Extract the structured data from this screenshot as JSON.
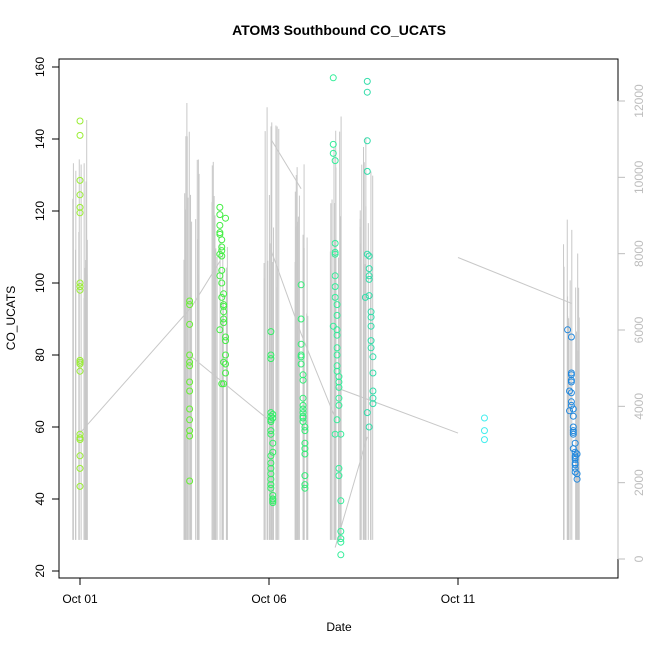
{
  "chart_data": {
    "type": "scatter",
    "title": "ATOM3 Southbound CO_UCATS",
    "xlabel": "Date",
    "ylabel": "CO_UCATS",
    "ylim": [
      20,
      160
    ],
    "y_ticks": [
      "20",
      "40",
      "60",
      "80",
      "100",
      "120",
      "140",
      "160"
    ],
    "x_ticks": [
      {
        "label": "Oct 01",
        "day": 1.0
      },
      {
        "label": "Oct 06",
        "day": 6.0
      },
      {
        "label": "Oct 11",
        "day": 11.0
      }
    ],
    "xlim_days": [
      0.6,
      15.1
    ],
    "secondary_axis": {
      "ylim": [
        0,
        12000
      ],
      "ticks": [
        "0",
        "2000",
        "4000",
        "6000",
        "8000",
        "10000",
        "12000"
      ],
      "color": "#bdbdbd"
    },
    "grid": false,
    "colors": {
      "altitude_trace": "#c8c8c8",
      "points_early": "#99ee33",
      "points_mid": "#33ee55",
      "points_late": "#33ddaa",
      "points_cyan": "#44eeee",
      "points_blue": "#2288dd"
    },
    "altitude_trace": {
      "units": "m",
      "bursts": [
        {
          "day": 1.0,
          "min": 500,
          "max": 12000
        },
        {
          "day": 3.95,
          "min": 500,
          "max": 12000
        },
        {
          "day": 4.7,
          "min": 500,
          "max": 11000
        },
        {
          "day": 6.05,
          "min": 500,
          "max": 12000
        },
        {
          "day": 6.85,
          "min": 500,
          "max": 11000
        },
        {
          "day": 7.75,
          "min": 500,
          "max": 12000
        },
        {
          "day": 8.6,
          "min": 500,
          "max": 12000
        },
        {
          "day": 14.0,
          "min": 500,
          "max": 9000
        }
      ],
      "transits": [
        [
          [
            1.0,
            3300
          ],
          [
            3.95,
            6600
          ],
          [
            4.7,
            7800
          ]
        ],
        [
          [
            3.95,
            5300
          ],
          [
            6.05,
            3600
          ]
        ],
        [
          [
            6.05,
            11000
          ],
          [
            6.85,
            9700
          ]
        ],
        [
          [
            6.05,
            8100
          ],
          [
            6.85,
            5900
          ],
          [
            7.75,
            3700
          ]
        ],
        [
          [
            7.75,
            4500
          ],
          [
            11.0,
            3300
          ]
        ],
        [
          [
            11.0,
            7900
          ],
          [
            14.0,
            6700
          ]
        ],
        [
          [
            8.6,
            3200
          ],
          [
            7.75,
            300
          ]
        ]
      ]
    },
    "series": [
      {
        "color": "#99ee33",
        "x": [
          1.0,
          1.0,
          1.0,
          1.0,
          1.0,
          1.0,
          1.0,
          1.0,
          1.0,
          1.0,
          1.0,
          1.0,
          1.0,
          1.0,
          1.0,
          1.0,
          1.0,
          1.0,
          1.0
        ],
        "y": [
          145,
          141,
          128.5,
          124.5,
          121,
          119.5,
          100,
          99,
          98,
          78.5,
          78,
          77.5,
          75.5,
          58,
          57,
          56.5,
          52,
          48.5,
          43.5
        ]
      },
      {
        "color": "#66ee33",
        "x": [
          3.9,
          3.9,
          3.9,
          3.9,
          3.9,
          3.9,
          3.9,
          3.9,
          3.9,
          3.9,
          3.9,
          3.9,
          3.9
        ],
        "y": [
          95,
          94,
          88.5,
          80,
          78,
          77,
          72.5,
          70,
          65,
          62,
          59,
          57.5,
          45
        ]
      },
      {
        "color": "#44ee44",
        "x": [
          4.7,
          4.7,
          4.7,
          4.7,
          4.75,
          4.75,
          4.75,
          4.75,
          4.75,
          4.8,
          4.8,
          4.8,
          4.8,
          4.8,
          4.85,
          4.85,
          4.85,
          4.85,
          4.85,
          4.7,
          4.7,
          4.75,
          4.75,
          4.8,
          4.8,
          4.7,
          4.75,
          4.8,
          4.85,
          4.7
        ],
        "y": [
          121,
          119,
          116,
          113.5,
          112,
          109,
          107.5,
          103.5,
          100,
          97,
          94,
          93.5,
          90,
          89,
          85,
          84,
          80,
          77.5,
          75,
          114,
          108,
          110,
          96,
          92,
          78,
          87,
          72,
          72,
          118,
          102
        ]
      },
      {
        "color": "#33ee66",
        "x": [
          6.05,
          6.05,
          6.05,
          6.05,
          6.05,
          6.05,
          6.05,
          6.05,
          6.05,
          6.05,
          6.05,
          6.05,
          6.05,
          6.05,
          6.05,
          6.05,
          6.1,
          6.1,
          6.1,
          6.1,
          6.1,
          6.1,
          6.1,
          6.1,
          6.1
        ],
        "y": [
          86.5,
          80,
          79,
          64,
          63,
          62,
          61.5,
          59,
          58,
          52,
          50,
          48.5,
          47,
          45.5,
          44,
          43,
          40,
          39.5,
          39,
          63.5,
          62.5,
          55.5,
          53,
          41,
          40
        ]
      },
      {
        "color": "#33ee77",
        "x": [
          6.85,
          6.85,
          6.85,
          6.85,
          6.85,
          6.85,
          6.9,
          6.9,
          6.9,
          6.9,
          6.9,
          6.9,
          6.9,
          6.9,
          6.9,
          6.95,
          6.95,
          6.95,
          6.95,
          6.95,
          6.95,
          6.95,
          6.95
        ],
        "y": [
          99.5,
          90,
          83,
          80,
          79.5,
          77.5,
          74.5,
          73,
          68,
          66,
          65,
          64,
          63,
          62.5,
          61.5,
          60,
          59,
          55.5,
          54,
          52.5,
          46.5,
          44,
          43
        ]
      },
      {
        "color": "#33ee99",
        "x": [
          7.7,
          7.7,
          7.7,
          7.75,
          7.75,
          7.75,
          7.75,
          7.75,
          7.75,
          7.8,
          7.8,
          7.8,
          7.8,
          7.8,
          7.8,
          7.8,
          7.8,
          7.85,
          7.85,
          7.85,
          7.85,
          7.85,
          7.85,
          7.9,
          7.9,
          7.9,
          7.9,
          7.9,
          7.9,
          7.75,
          7.8,
          7.85,
          7.7,
          7.75
        ],
        "y": [
          157,
          138.5,
          136,
          134,
          111,
          108,
          108.5,
          102,
          99,
          94,
          91,
          87,
          85.5,
          82,
          80,
          77,
          75.5,
          74,
          72.5,
          71,
          68,
          48.5,
          46.5,
          39.5,
          31,
          29,
          28,
          24.5,
          58,
          58,
          62,
          66,
          88,
          96
        ]
      },
      {
        "color": "#33ddaa",
        "x": [
          8.6,
          8.6,
          8.6,
          8.6,
          8.6,
          8.65,
          8.65,
          8.65,
          8.65,
          8.65,
          8.7,
          8.7,
          8.7,
          8.7,
          8.7,
          8.75,
          8.75,
          8.75,
          8.75,
          8.75,
          8.55,
          8.6,
          8.65
        ],
        "y": [
          156,
          153,
          139.5,
          131,
          108,
          107.5,
          104,
          102,
          101,
          96.5,
          92,
          90.5,
          88,
          84,
          82,
          79.5,
          75,
          70,
          68,
          66.5,
          96,
          64,
          60
        ]
      },
      {
        "color": "#44eeee",
        "x": [
          11.7,
          11.7,
          11.7
        ],
        "y": [
          62.5,
          59,
          56.5
        ]
      },
      {
        "color": "#2288dd",
        "x": [
          13.9,
          14.0,
          14.0,
          14.0,
          14.0,
          14.0,
          14.0,
          14.0,
          14.05,
          14.05,
          14.05,
          14.05,
          14.05,
          14.05,
          14.1,
          14.1,
          14.1,
          14.1,
          14.1,
          14.1,
          14.1,
          14.15,
          14.15,
          14.15,
          13.95,
          13.95,
          14.0,
          14.05,
          14.1,
          14.1
        ],
        "y": [
          87,
          85,
          75,
          74.5,
          73,
          72.5,
          69.5,
          67,
          65,
          60,
          59,
          58.5,
          58,
          54,
          53,
          52,
          51.5,
          51,
          50,
          48.5,
          47.5,
          47,
          45.5,
          52.5,
          64.5,
          70,
          66,
          63,
          55.5,
          49.5
        ]
      }
    ]
  }
}
